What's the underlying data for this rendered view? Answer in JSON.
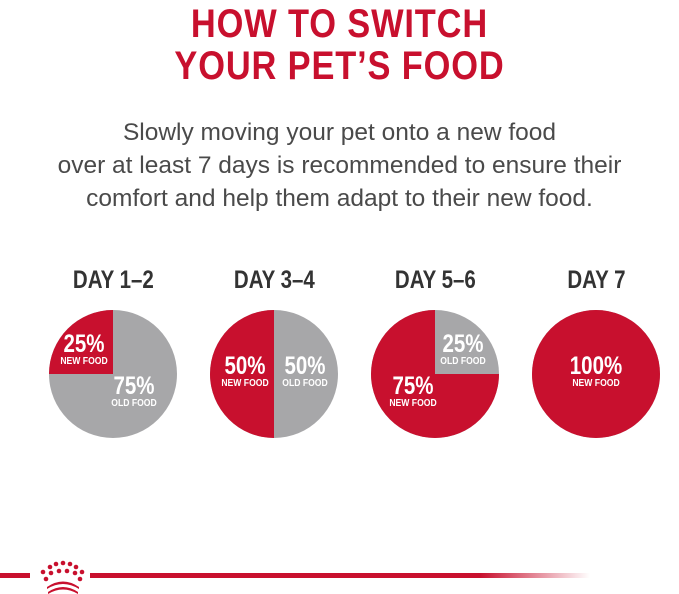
{
  "title": {
    "line1": "HOW TO SWITCH",
    "line2": "YOUR PET’S FOOD"
  },
  "intro": {
    "line1": "Slowly moving your pet onto a new food",
    "line2": "over at least 7 days is recommended to ensure their",
    "line3": "comfort and help them adapt to their new food."
  },
  "colors": {
    "new_food": "#c8102e",
    "old_food": "#a7a7a9",
    "text": "#4a4a4a"
  },
  "stages": [
    {
      "day": "DAY 1–2",
      "new_pct": 25,
      "new_label": "25%",
      "new_caption": "NEW FOOD",
      "old_label": "75%",
      "old_caption": "OLD FOOD"
    },
    {
      "day": "DAY 3–4",
      "new_pct": 50,
      "new_label": "50%",
      "new_caption": "NEW FOOD",
      "old_label": "50%",
      "old_caption": "OLD FOOD"
    },
    {
      "day": "DAY 5–6",
      "new_pct": 75,
      "new_label": "75%",
      "new_caption": "NEW FOOD",
      "old_label": "25%",
      "old_caption": "OLD FOOD"
    },
    {
      "day": "DAY 7",
      "new_pct": 100,
      "new_label": "100%",
      "new_caption": "NEW FOOD",
      "old_label": "",
      "old_caption": ""
    }
  ],
  "footer": {
    "logo": "crown-icon"
  }
}
